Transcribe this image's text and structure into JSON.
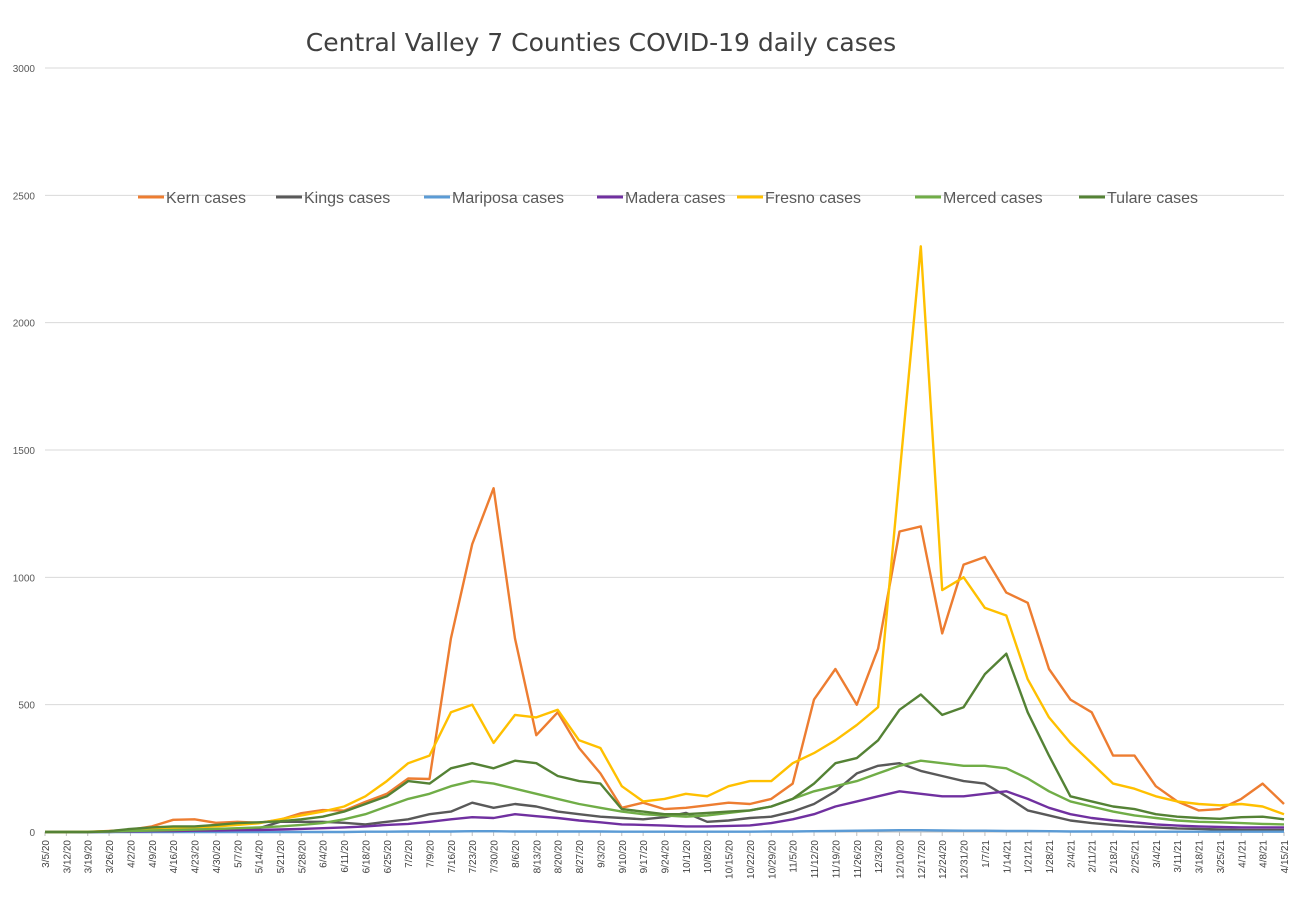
{
  "chart_data": {
    "type": "line",
    "title": "Central Valley 7 Counties COVID-19 daily cases",
    "xlabel": "",
    "ylabel": "",
    "ylim": [
      0,
      3000
    ],
    "yticks": [
      0,
      500,
      1000,
      1500,
      2000,
      2500,
      3000
    ],
    "grid": "horizontal",
    "legend": "top",
    "x_tick_labels": [
      "3/5/20",
      "3/12/20",
      "3/19/20",
      "3/26/20",
      "4/2/20",
      "4/9/20",
      "4/16/20",
      "4/23/20",
      "4/30/20",
      "5/7/20",
      "5/14/20",
      "5/21/20",
      "5/28/20",
      "6/4/20",
      "6/11/20",
      "6/18/20",
      "6/25/20",
      "7/2/20",
      "7/9/20",
      "7/16/20",
      "7/23/20",
      "7/30/20",
      "8/6/20",
      "8/13/20",
      "8/20/20",
      "8/27/20",
      "9/3/20",
      "9/10/20",
      "9/17/20",
      "9/24/20",
      "10/1/20",
      "10/8/20",
      "10/15/20",
      "10/22/20",
      "10/29/20",
      "11/5/20",
      "11/12/20",
      "11/19/20",
      "11/26/20",
      "12/3/20",
      "12/10/20",
      "12/17/20",
      "12/24/20",
      "12/31/20",
      "1/7/21",
      "1/14/21",
      "1/21/21",
      "1/28/21",
      "2/4/21",
      "2/11/21",
      "2/18/21",
      "2/25/21",
      "3/4/21",
      "3/11/21",
      "3/18/21",
      "3/25/21",
      "4/1/21",
      "4/8/21",
      "4/15/21"
    ],
    "series": [
      {
        "name": "Kern cases",
        "color": "#ED7D31",
        "values": [
          0,
          0,
          0,
          4,
          9,
          22,
          48,
          50,
          36,
          40,
          36,
          48,
          74,
          86,
          84,
          118,
          150,
          210,
          208,
          760,
          1130,
          1350,
          760,
          380,
          470,
          330,
          230,
          95,
          115,
          90,
          95,
          105,
          115,
          110,
          130,
          190,
          520,
          640,
          500,
          720,
          1180,
          1200,
          780,
          1050,
          1080,
          940,
          900,
          640,
          520,
          470,
          300,
          300,
          180,
          120,
          85,
          90,
          130,
          190,
          110
        ]
      },
      {
        "name": "Kings cases",
        "color": "#595959",
        "values": [
          0,
          0,
          0,
          0,
          3,
          4,
          6,
          8,
          10,
          12,
          14,
          40,
          40,
          40,
          36,
          30,
          40,
          50,
          70,
          80,
          115,
          95,
          110,
          100,
          80,
          70,
          60,
          55,
          50,
          58,
          75,
          40,
          45,
          55,
          60,
          80,
          110,
          160,
          230,
          260,
          270,
          240,
          220,
          200,
          190,
          140,
          85,
          65,
          45,
          35,
          28,
          22,
          18,
          14,
          12,
          10,
          8,
          8,
          8
        ]
      },
      {
        "name": "Mariposa cases",
        "color": "#5B9BD5",
        "values": [
          0,
          0,
          0,
          0,
          0,
          0,
          0,
          0,
          0,
          0,
          0,
          0,
          0,
          0,
          0,
          1,
          1,
          2,
          2,
          2,
          3,
          3,
          2,
          2,
          2,
          2,
          2,
          1,
          1,
          1,
          1,
          1,
          1,
          1,
          2,
          2,
          3,
          4,
          5,
          6,
          7,
          7,
          6,
          5,
          5,
          4,
          4,
          3,
          2,
          2,
          2,
          1,
          1,
          1,
          1,
          1,
          1,
          1,
          1
        ]
      },
      {
        "name": "Madera cases",
        "color": "#7030A0",
        "values": [
          0,
          0,
          0,
          1,
          2,
          3,
          4,
          5,
          6,
          7,
          8,
          10,
          12,
          15,
          18,
          22,
          28,
          32,
          40,
          50,
          58,
          55,
          70,
          62,
          55,
          45,
          38,
          30,
          28,
          25,
          22,
          22,
          24,
          26,
          35,
          50,
          70,
          100,
          120,
          140,
          160,
          150,
          140,
          140,
          150,
          160,
          130,
          95,
          70,
          55,
          45,
          38,
          30,
          25,
          22,
          20,
          18,
          18,
          18
        ]
      },
      {
        "name": "Fresno cases",
        "color": "#FFC000",
        "values": [
          0,
          0,
          1,
          3,
          6,
          10,
          14,
          18,
          22,
          28,
          34,
          50,
          65,
          80,
          100,
          140,
          200,
          270,
          300,
          470,
          500,
          350,
          460,
          450,
          480,
          360,
          330,
          180,
          120,
          130,
          150,
          140,
          180,
          200,
          200,
          270,
          310,
          360,
          420,
          490,
          1400,
          2300,
          950,
          1000,
          880,
          850,
          600,
          450,
          350,
          270,
          190,
          170,
          140,
          120,
          110,
          105,
          110,
          100,
          70
        ]
      },
      {
        "name": "Merced cases",
        "color": "#70AD47",
        "values": [
          0,
          0,
          0,
          2,
          4,
          6,
          8,
          10,
          12,
          15,
          18,
          22,
          28,
          35,
          50,
          70,
          100,
          130,
          150,
          180,
          200,
          190,
          170,
          150,
          130,
          110,
          95,
          80,
          70,
          65,
          60,
          65,
          75,
          85,
          100,
          130,
          160,
          180,
          200,
          230,
          260,
          280,
          270,
          260,
          260,
          250,
          210,
          160,
          120,
          100,
          80,
          65,
          55,
          45,
          40,
          38,
          35,
          32,
          30
        ]
      },
      {
        "name": "Tulare cases",
        "color": "#548235",
        "values": [
          0,
          0,
          0,
          3,
          12,
          18,
          22,
          22,
          28,
          35,
          38,
          42,
          50,
          60,
          80,
          110,
          140,
          200,
          190,
          250,
          270,
          250,
          280,
          270,
          220,
          200,
          190,
          90,
          80,
          70,
          70,
          75,
          80,
          85,
          100,
          130,
          190,
          270,
          290,
          360,
          480,
          540,
          460,
          490,
          620,
          700,
          470,
          300,
          140,
          120,
          100,
          90,
          70,
          60,
          55,
          52,
          58,
          60,
          50
        ]
      }
    ]
  }
}
